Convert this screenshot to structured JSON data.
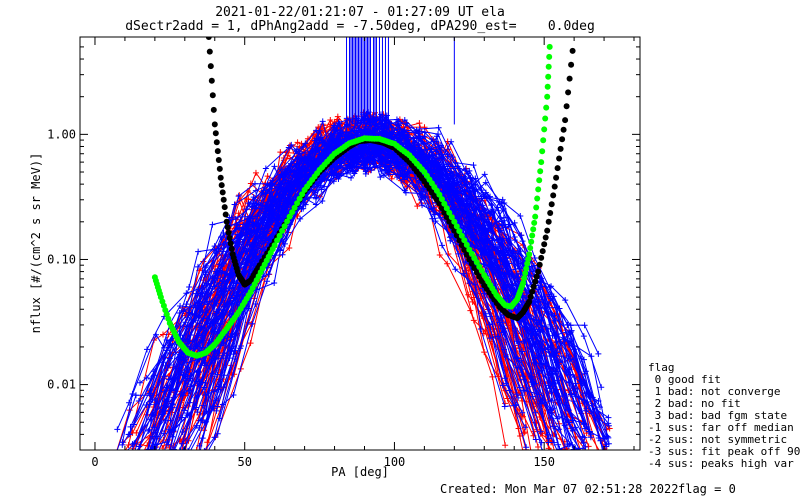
{
  "chart_data": {
    "type": "line",
    "title_line1": "2021-01-22/01:21:07 - 01:27:09 UT ela",
    "title_line2": "dSectr2add = 1, dPhAng2add = -7.50deg, dPA290_est=    0.0deg",
    "xlabel": "PA [deg]",
    "ylabel": "nflux [#/(cm^2 s sr MeV)]",
    "xlim": [
      -5,
      182
    ],
    "ylim": [
      0.003,
      6
    ],
    "yscale": "log",
    "xticks": [
      0,
      50,
      100,
      150
    ],
    "xtick_labels": [
      "0",
      "50",
      "100",
      "150"
    ],
    "yticks": [
      0.01,
      0.1,
      1.0
    ],
    "ytick_labels": [
      "0.01",
      "0.10",
      "1.00"
    ],
    "series": [
      {
        "color": "#ff0000",
        "style": "lines+crosses",
        "profile_center": 90,
        "profile_width": 34,
        "peak_range": [
          0.75,
          1.05
        ],
        "count": 60
      },
      {
        "color": "#0000ff",
        "style": "lines+crosses",
        "profile_center": 92,
        "profile_width": 36,
        "peak_range": [
          0.7,
          1.0
        ],
        "count": 80
      },
      {
        "color": "#000000",
        "style": "dots",
        "points": [
          [
            38,
            6
          ],
          [
            40,
            1.2
          ],
          [
            42,
            0.45
          ],
          [
            44,
            0.2
          ],
          [
            46,
            0.11
          ],
          [
            48,
            0.075
          ],
          [
            50,
            0.063
          ],
          [
            52,
            0.068
          ],
          [
            55,
            0.09
          ],
          [
            60,
            0.14
          ],
          [
            65,
            0.22
          ],
          [
            70,
            0.35
          ],
          [
            75,
            0.5
          ],
          [
            80,
            0.65
          ],
          [
            85,
            0.8
          ],
          [
            88,
            0.88
          ],
          [
            92,
            0.9
          ],
          [
            96,
            0.86
          ],
          [
            100,
            0.78
          ],
          [
            105,
            0.6
          ],
          [
            110,
            0.42
          ],
          [
            115,
            0.28
          ],
          [
            120,
            0.17
          ],
          [
            125,
            0.1
          ],
          [
            130,
            0.062
          ],
          [
            135,
            0.042
          ],
          [
            138,
            0.036
          ],
          [
            141,
            0.034
          ],
          [
            143,
            0.038
          ],
          [
            145,
            0.046
          ],
          [
            148,
            0.08
          ],
          [
            151,
            0.17
          ],
          [
            154,
            0.45
          ],
          [
            157,
            1.3
          ],
          [
            160,
            6
          ]
        ]
      },
      {
        "color": "#00ff00",
        "style": "dots",
        "points": [
          [
            20,
            0.072
          ],
          [
            22,
            0.05
          ],
          [
            25,
            0.031
          ],
          [
            28,
            0.022
          ],
          [
            31,
            0.018
          ],
          [
            34,
            0.017
          ],
          [
            37,
            0.018
          ],
          [
            40,
            0.021
          ],
          [
            44,
            0.028
          ],
          [
            48,
            0.038
          ],
          [
            52,
            0.055
          ],
          [
            56,
            0.085
          ],
          [
            60,
            0.13
          ],
          [
            65,
            0.22
          ],
          [
            70,
            0.36
          ],
          [
            75,
            0.52
          ],
          [
            80,
            0.7
          ],
          [
            85,
            0.85
          ],
          [
            90,
            0.93
          ],
          [
            95,
            0.92
          ],
          [
            100,
            0.84
          ],
          [
            105,
            0.68
          ],
          [
            110,
            0.5
          ],
          [
            115,
            0.33
          ],
          [
            120,
            0.2
          ],
          [
            125,
            0.12
          ],
          [
            130,
            0.075
          ],
          [
            134,
            0.052
          ],
          [
            137,
            0.043
          ],
          [
            139,
            0.042
          ],
          [
            141,
            0.048
          ],
          [
            143,
            0.065
          ],
          [
            145,
            0.11
          ],
          [
            147,
            0.22
          ],
          [
            149,
            0.6
          ],
          [
            151,
            2.0
          ],
          [
            152,
            6
          ]
        ]
      },
      {
        "color": "#0000ff",
        "style": "vertical-ticks",
        "x": [
          84,
          85,
          85.5,
          86,
          86.5,
          87,
          87.5,
          88,
          88.5,
          89,
          89.5,
          90,
          90.5,
          91,
          91.5,
          92,
          93,
          93.5,
          94,
          95,
          96,
          97,
          98,
          120
        ],
        "y_bottom": 1.2
      }
    ]
  },
  "legend": {
    "heading": "flag",
    "items": [
      " 0 good fit",
      " 1 bad: not converge",
      " 2 bad: no fit",
      " 3 bad: bad fgm state",
      "-1 sus: far off median",
      "-2 sus: not symmetric",
      "-3 sus: fit peak off 90",
      "-4 sus: peaks high var"
    ]
  },
  "footer": {
    "created": "Created: Mon Mar 07 02:51:28 2022",
    "flag": "flag = 0"
  }
}
